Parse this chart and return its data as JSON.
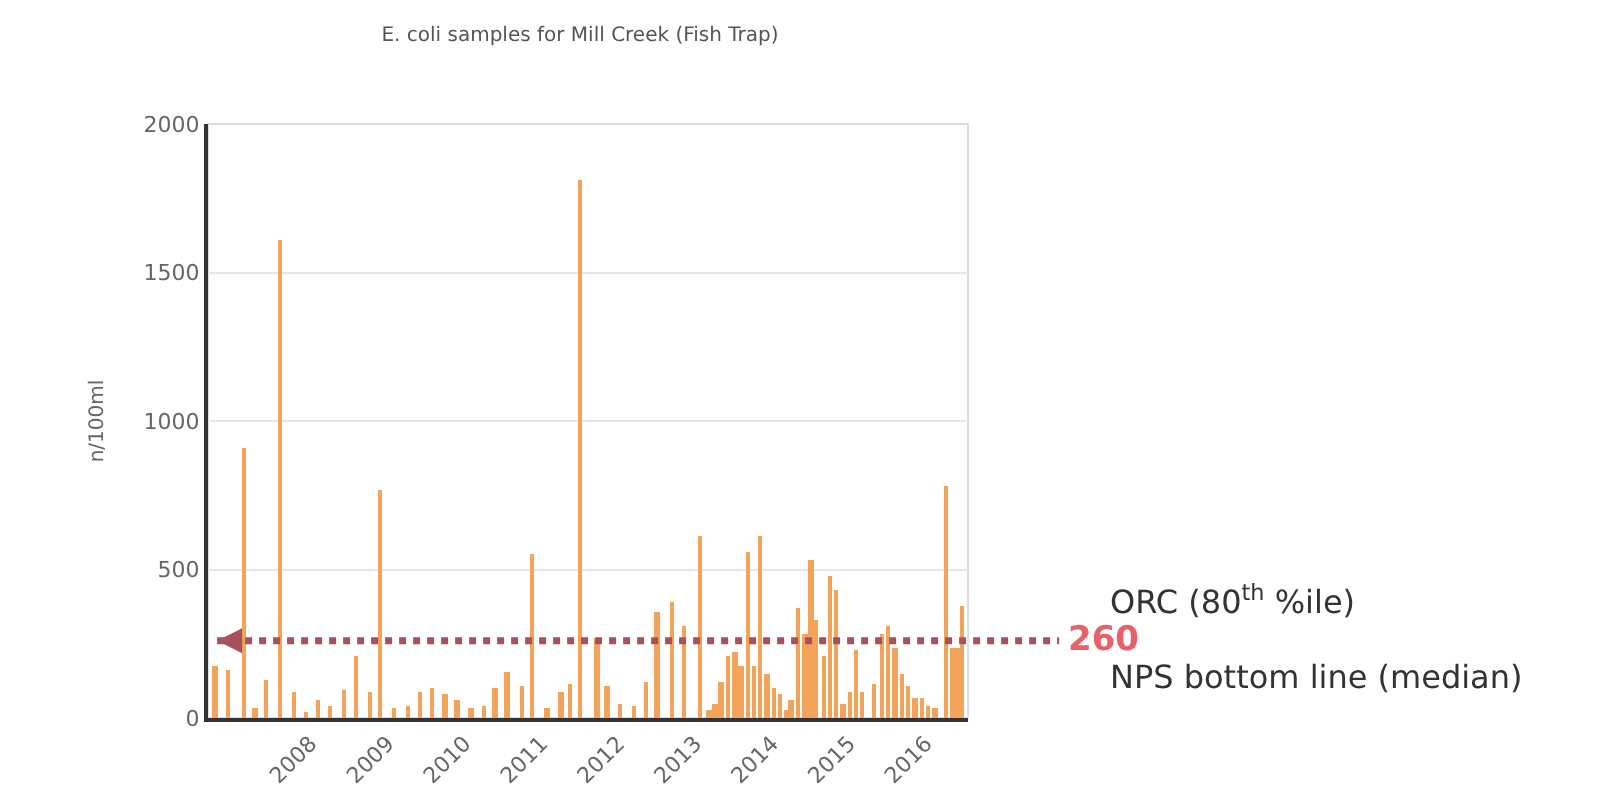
{
  "chart_data": {
    "type": "bar",
    "title": "E. coli samples for Mill Creek (Fish Trap)",
    "ylabel": "n/100ml",
    "x": [
      "2006-10-04",
      "2006-12-05",
      "2007-02-20",
      "2007-04-12",
      "2007-06-06",
      "2007-08-07",
      "2007-10-12",
      "2007-12-13",
      "2008-02-06",
      "2008-04-05",
      "2008-06-09",
      "2008-08-07",
      "2008-10-12",
      "2008-11-25",
      "2009-02-02",
      "2009-04-05",
      "2009-06-02",
      "2009-08-03",
      "2009-10-01",
      "2009-11-28",
      "2010-02-02",
      "2010-04-02",
      "2010-05-26",
      "2010-07-23",
      "2010-10-01",
      "2010-11-21",
      "2011-01-29",
      "2011-04-05",
      "2011-05-19",
      "2011-07-05",
      "2011-09-23",
      "2011-11-10",
      "2012-01-12",
      "2012-03-14",
      "2012-05-11",
      "2012-07-05",
      "2012-09-13",
      "2012-11-06",
      "2013-01-26",
      "2013-03-07",
      "2013-04-05",
      "2013-05-04",
      "2013-06-06",
      "2013-07-09",
      "2013-08-07",
      "2013-09-09",
      "2013-10-08",
      "2013-11-06",
      "2013-12-09",
      "2014-01-08",
      "2014-02-06",
      "2014-03-07",
      "2014-04-02",
      "2014-05-05",
      "2014-06-07",
      "2014-07-05",
      "2014-07-31",
      "2014-09-02",
      "2014-10-04",
      "2014-11-03",
      "2014-12-05",
      "2015-01-05",
      "2015-02-06",
      "2015-03-07",
      "2015-04-30",
      "2015-06-07",
      "2015-07-09",
      "2015-08-07",
      "2015-09-09",
      "2015-10-12",
      "2015-11-10",
      "2015-12-13",
      "2016-01-15",
      "2016-02-13",
      "2016-04-05",
      "2016-05-04",
      "2016-05-30",
      "2016-06-24"
    ],
    "values": [
      175,
      165,
      910,
      35,
      130,
      1610,
      90,
      20,
      60,
      40,
      95,
      210,
      85,
      770,
      35,
      40,
      90,
      100,
      80,
      60,
      35,
      40,
      100,
      155,
      110,
      550,
      35,
      90,
      115,
      1810,
      270,
      105,
      45,
      40,
      120,
      360,
      390,
      310,
      610,
      30,
      45,
      120,
      210,
      220,
      175,
      560,
      175,
      610,
      150,
      100,
      80,
      30,
      60,
      370,
      280,
      530,
      330,
      210,
      480,
      430,
      45,
      90,
      230,
      90,
      115,
      280,
      310,
      235,
      145,
      105,
      70,
      70,
      40,
      35,
      780,
      235,
      235,
      380
    ],
    "color": "#f4a45a",
    "xlim": [
      "2006-09-01",
      "2016-07-20"
    ],
    "xticks": [
      "2008",
      "2009",
      "2010",
      "2011",
      "2012",
      "2013",
      "2014",
      "2015",
      "2016"
    ],
    "ylim": [
      0,
      2000
    ],
    "yticks": [
      0,
      500,
      1000,
      1500,
      2000
    ],
    "grid": "y",
    "ref_lines": [
      {
        "axis": "y",
        "value": 260,
        "label": "260",
        "color": "#a8505c",
        "line_style": "dotted"
      }
    ],
    "annotations": [
      "ORC (80$^{th}$ %ile)",
      "NPS bottom line (median)"
    ]
  }
}
